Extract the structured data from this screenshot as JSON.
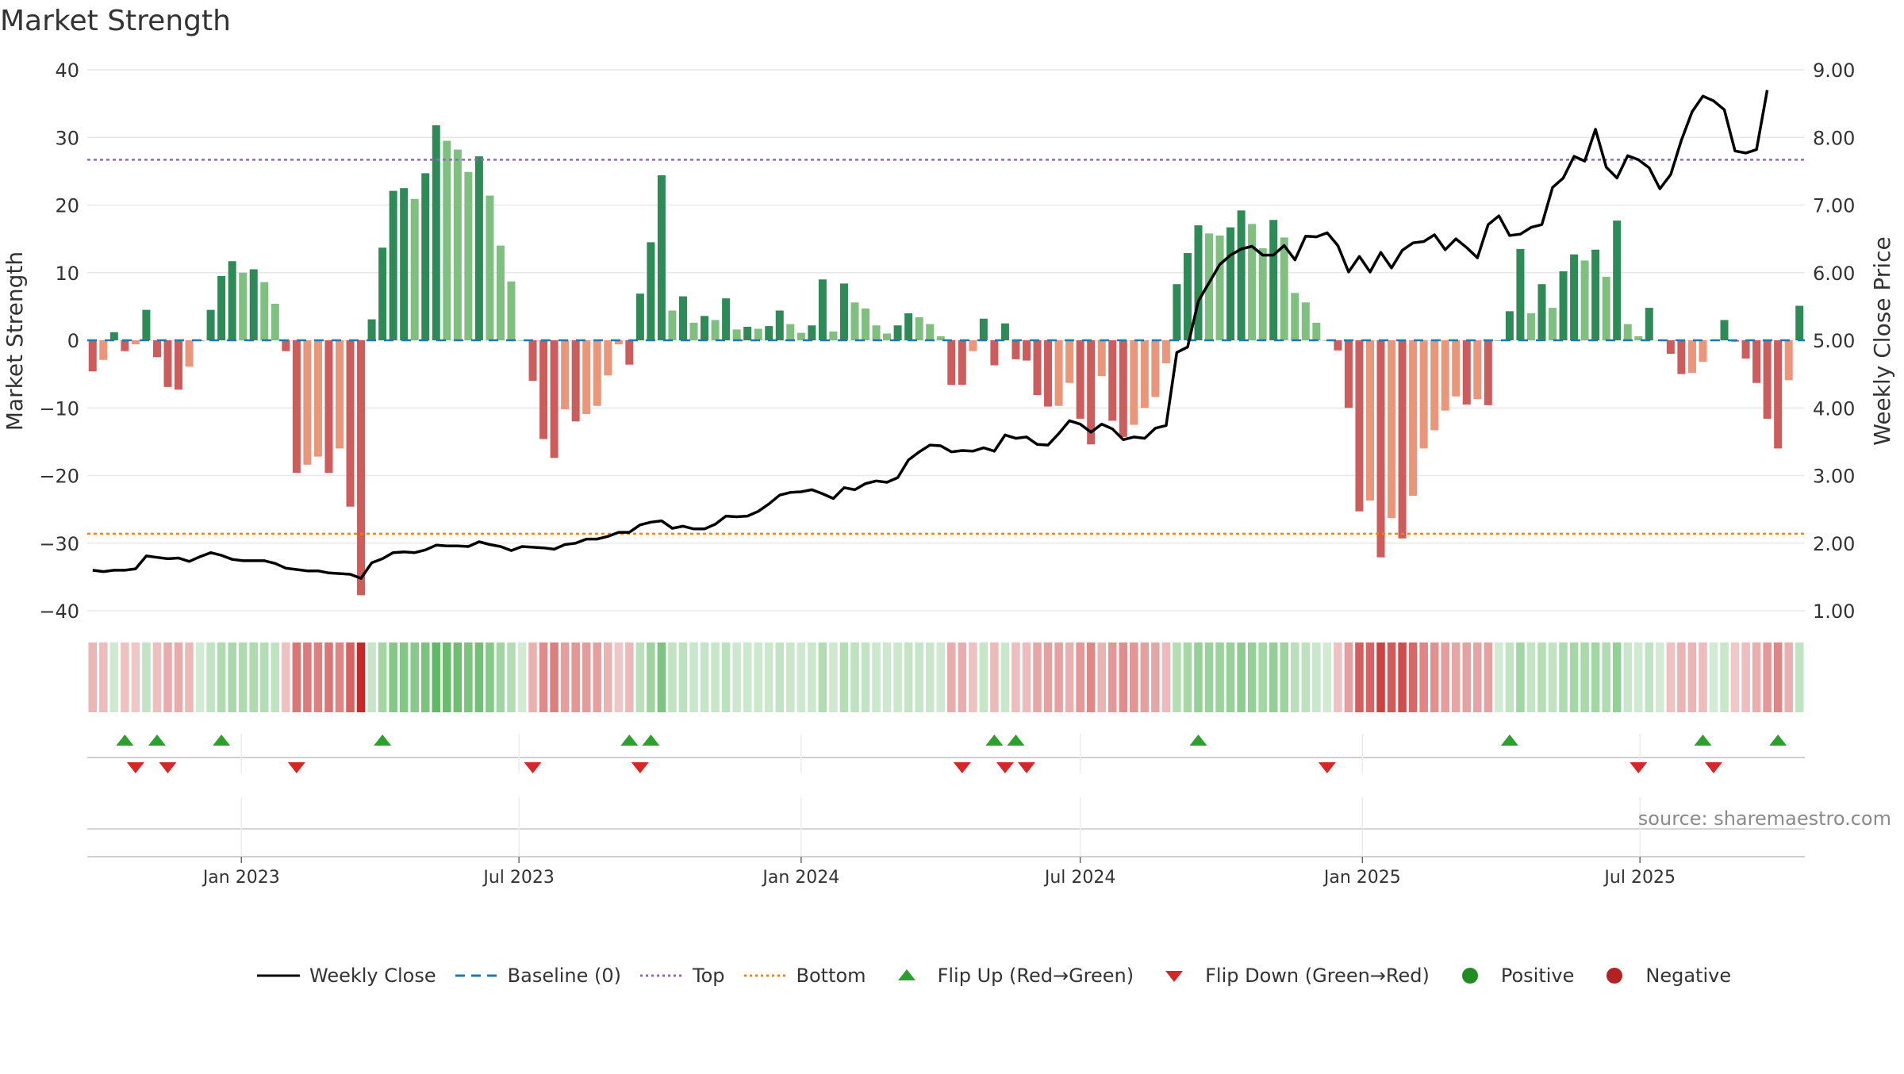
{
  "chart_data": {
    "type": "bar",
    "title": "Market Strength",
    "ylabel": "Market Strength",
    "y2label": "Weekly Close Price",
    "ylim": [
      -40,
      40
    ],
    "y2lim": [
      1.0,
      9.0
    ],
    "yticks": [
      "40",
      "30",
      "20",
      "10",
      "0",
      "−10",
      "−20",
      "−30",
      "−40"
    ],
    "y2ticks": [
      "9.00",
      "8.00",
      "7.00",
      "6.00",
      "5.00",
      "4.00",
      "3.00",
      "2.00",
      "1.00"
    ],
    "xticks": [
      "Jan 2023",
      "Jul 2023",
      "Jan 2024",
      "Jul 2024",
      "Jan 2025",
      "Jul 2025"
    ],
    "top_level": 26.7,
    "bottom_level": -28.6,
    "strength": [
      -4.6,
      -2.9,
      1.2,
      -1.6,
      -0.6,
      4.5,
      -2.5,
      -6.9,
      -7.3,
      -3.9,
      0,
      4.5,
      9.5,
      11.7,
      10.0,
      10.5,
      8.6,
      5.4,
      -1.6,
      -19.6,
      -18.4,
      -17.2,
      -19.6,
      -16.0,
      -24.6,
      -37.7,
      3.1,
      13.7,
      22.1,
      22.5,
      20.9,
      24.7,
      31.8,
      29.5,
      28.2,
      24.9,
      27.2,
      21.4,
      14.0,
      8.7,
      0,
      -6.0,
      -14.6,
      -17.4,
      -10.2,
      -12.0,
      -10.9,
      -9.7,
      -5.2,
      -0.6,
      -3.6,
      6.9,
      14.5,
      24.4,
      4.4,
      6.5,
      2.6,
      3.6,
      3.0,
      6.2,
      1.6,
      2.0,
      1.7,
      2.1,
      4.4,
      2.4,
      1.1,
      2.2,
      9.0,
      1.3,
      8.4,
      5.6,
      4.7,
      2.2,
      1.0,
      2.2,
      4.0,
      3.4,
      2.4,
      0.6,
      -6.6,
      -6.6,
      -1.6,
      3.2,
      -3.7,
      2.5,
      -2.8,
      -3.0,
      -8.1,
      -9.8,
      -9.7,
      -6.3,
      -11.6,
      -15.4,
      -5.3,
      -11.9,
      -14.3,
      -12.5,
      -10.0,
      -8.4,
      -3.4,
      8.3,
      12.9,
      17.0,
      15.8,
      15.5,
      16.7,
      19.2,
      17.2,
      13.6,
      17.8,
      15.2,
      7.0,
      5.6,
      2.6,
      0,
      -1.5,
      -10.0,
      -25.3,
      -23.7,
      -32.1,
      -26.3,
      -29.3,
      -23.0,
      -16.0,
      -13.3,
      -10.4,
      -8.3,
      -9.5,
      -8.7,
      -9.6,
      0,
      4.3,
      13.5,
      4.0,
      8.3,
      4.8,
      10.2,
      12.7,
      11.8,
      13.4,
      9.4,
      17.7,
      2.4,
      0.6,
      4.8,
      0,
      -2.0,
      -5.0,
      -4.8,
      -3.2,
      0,
      3.0,
      -0.2,
      -2.7,
      -6.3,
      -11.6,
      -16.0,
      -5.9,
      5.1
    ],
    "weekly_close": [
      1.6,
      1.58,
      1.6,
      1.6,
      1.62,
      1.81,
      1.79,
      1.77,
      1.78,
      1.73,
      1.8,
      1.86,
      1.82,
      1.76,
      1.74,
      1.74,
      1.74,
      1.7,
      1.63,
      1.61,
      1.59,
      1.59,
      1.56,
      1.55,
      1.54,
      1.48,
      1.71,
      1.77,
      1.86,
      1.87,
      1.86,
      1.9,
      1.97,
      1.96,
      1.96,
      1.95,
      2.02,
      1.98,
      1.95,
      1.89,
      1.95,
      1.94,
      1.93,
      1.91,
      1.98,
      2.0,
      2.06,
      2.06,
      2.1,
      2.16,
      2.16,
      2.27,
      2.31,
      2.33,
      2.22,
      2.25,
      2.21,
      2.21,
      2.28,
      2.4,
      2.39,
      2.4,
      2.47,
      2.58,
      2.71,
      2.75,
      2.76,
      2.79,
      2.73,
      2.66,
      2.82,
      2.79,
      2.88,
      2.92,
      2.9,
      2.97,
      3.23,
      3.35,
      3.45,
      3.44,
      3.35,
      3.37,
      3.36,
      3.41,
      3.36,
      3.6,
      3.55,
      3.57,
      3.46,
      3.45,
      3.62,
      3.81,
      3.76,
      3.64,
      3.76,
      3.69,
      3.53,
      3.57,
      3.55,
      3.7,
      3.74,
      4.82,
      4.9,
      5.58,
      5.85,
      6.12,
      6.26,
      6.35,
      6.39,
      6.26,
      6.26,
      6.4,
      6.19,
      6.54,
      6.53,
      6.59,
      6.4,
      6.01,
      6.24,
      6.01,
      6.3,
      6.07,
      6.33,
      6.44,
      6.46,
      6.56,
      6.34,
      6.5,
      6.37,
      6.22,
      6.71,
      6.84,
      6.55,
      6.57,
      6.67,
      6.71,
      7.26,
      7.4,
      7.72,
      7.65,
      8.12,
      7.56,
      7.4,
      7.73,
      7.67,
      7.55,
      7.24,
      7.45,
      7.96,
      8.38,
      8.61,
      8.54,
      8.41,
      7.8,
      7.77,
      7.82,
      8.7
    ],
    "flips_up": [
      3,
      6,
      12,
      27,
      50,
      52,
      84,
      86,
      103,
      132,
      150,
      157
    ],
    "flips_down": [
      4,
      7,
      19,
      41,
      51,
      81,
      85,
      87,
      115,
      144,
      151
    ],
    "legend": [
      "Weekly Close",
      "Baseline (0)",
      "Top",
      "Bottom",
      "Flip Up (Red→Green)",
      "Flip Down (Green→Red)",
      "Positive",
      "Negative"
    ],
    "legend_placement": "bottom-center",
    "grid": true
  },
  "source": "source: sharemaestro.com",
  "colors": {
    "up_dark": "#2e8b57",
    "up_light": "#7fbf7f",
    "down_dark": "#cd5c5c",
    "down_light": "#e9967a",
    "line": "#000000",
    "baseline": "#1f77b4",
    "top": "#9467bd",
    "bottom": "#ff7f0e",
    "flip_up": "#2ca02c",
    "flip_down": "#d62728",
    "positive": "#228b22",
    "negative": "#b22222",
    "grid": "#e8e8e8"
  }
}
